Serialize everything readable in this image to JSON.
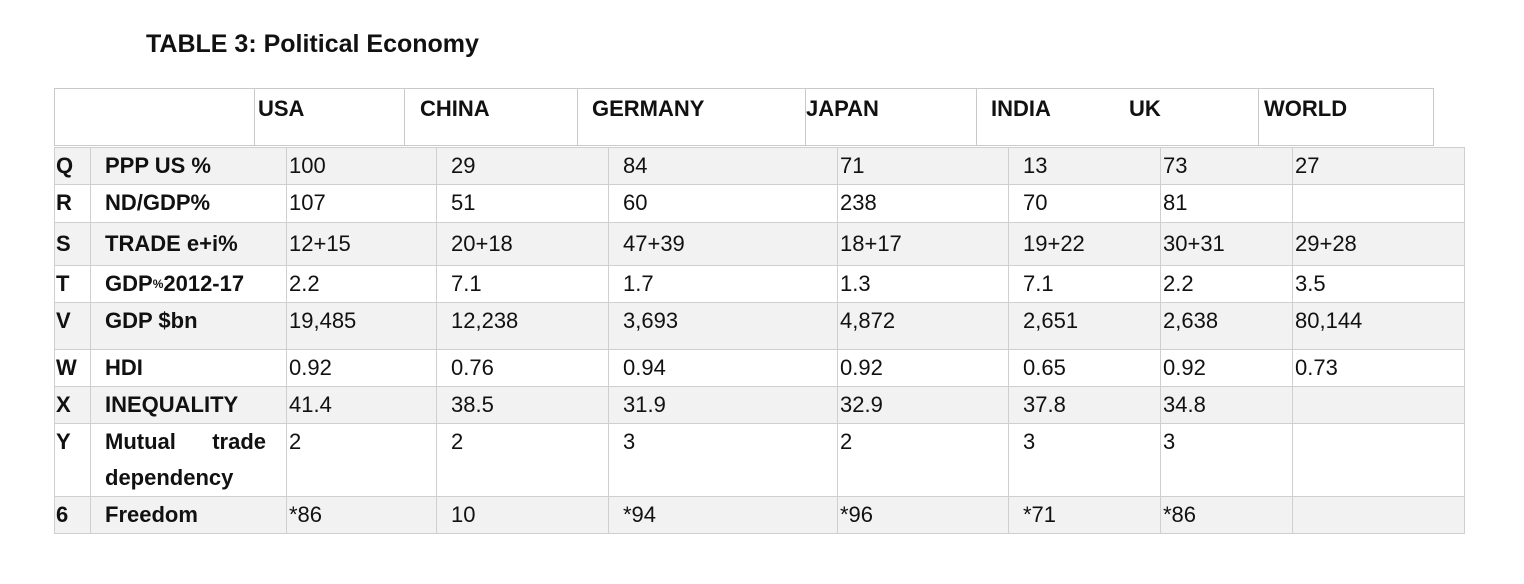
{
  "title": "TABLE 3: Political Economy",
  "headers": [
    "USA",
    "CHINA",
    "GERMANY",
    "JAPAN",
    "INDIA",
    "UK",
    "WORLD"
  ],
  "rows": [
    {
      "key": "Q",
      "label": "PPP US %",
      "values": [
        "100",
        "29",
        "84",
        "71",
        "13",
        "73",
        "27"
      ]
    },
    {
      "key": "R",
      "label": "ND/GDP%",
      "values": [
        "107",
        "51",
        "60",
        "238",
        "70",
        "81",
        ""
      ]
    },
    {
      "key": "S",
      "label": "TRADE e+i%",
      "values": [
        "12+15",
        "20+18",
        "47+39",
        "18+17",
        "19+22",
        "30+31",
        "29+28"
      ]
    },
    {
      "key": "T",
      "label_main": "GDP",
      "label_sup": "%",
      "label_tail": "2012-17",
      "values": [
        "2.2",
        "7.1",
        "1.7",
        "1.3",
        "7.1",
        "2.2",
        "3.5"
      ]
    },
    {
      "key": "V",
      "label": "GDP $bn",
      "values": [
        "19,485",
        "12,238",
        "3,693",
        "4,872",
        "2,651",
        "2,638",
        "80,144"
      ]
    },
    {
      "key": "W",
      "label": "HDI",
      "values": [
        "0.92",
        "0.76",
        "0.94",
        "0.92",
        "0.65",
        "0.92",
        "0.73"
      ]
    },
    {
      "key": "X",
      "label": "INEQUALITY",
      "values": [
        "41.4",
        "38.5",
        "31.9",
        "32.9",
        "37.8",
        "34.8",
        ""
      ]
    },
    {
      "key": "Y",
      "label_line1": "Mutual   trade",
      "label_line2": "dependency",
      "values": [
        "2",
        "2",
        "3",
        "2",
        "3",
        "3",
        ""
      ]
    },
    {
      "key": "6",
      "label": "Freedom",
      "values": [
        "*86",
        "10",
        "*94",
        "*96",
        "*71",
        "*86",
        ""
      ]
    }
  ]
}
